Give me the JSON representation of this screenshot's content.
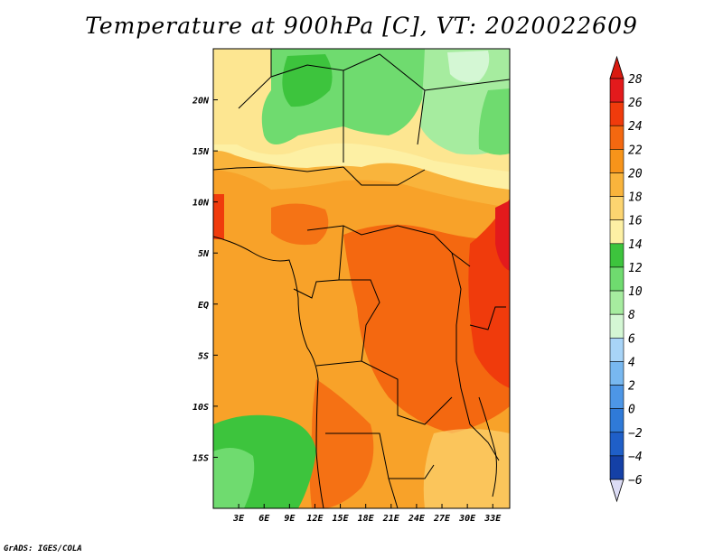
{
  "title": "Temperature at 900hPa [C], VT: 2020022609",
  "credit": "GrADS: IGES/COLA",
  "map": {
    "units": "C",
    "valid_time": "2020022609",
    "lon_range": [
      0,
      35
    ],
    "lat_range": [
      -20,
      25
    ],
    "lon_ticks": [
      {
        "value": 3,
        "label": "3E"
      },
      {
        "value": 6,
        "label": "6E"
      },
      {
        "value": 9,
        "label": "9E"
      },
      {
        "value": 12,
        "label": "12E"
      },
      {
        "value": 15,
        "label": "15E"
      },
      {
        "value": 18,
        "label": "18E"
      },
      {
        "value": 21,
        "label": "21E"
      },
      {
        "value": 24,
        "label": "24E"
      },
      {
        "value": 27,
        "label": "27E"
      },
      {
        "value": 30,
        "label": "30E"
      },
      {
        "value": 33,
        "label": "33E"
      }
    ],
    "lat_ticks": [
      {
        "value": 20,
        "label": "20N"
      },
      {
        "value": 15,
        "label": "15N"
      },
      {
        "value": 10,
        "label": "10N"
      },
      {
        "value": 5,
        "label": "5N"
      },
      {
        "value": 0,
        "label": "EQ"
      },
      {
        "value": -5,
        "label": "5S"
      },
      {
        "value": -10,
        "label": "10S"
      },
      {
        "value": -15,
        "label": "15S"
      }
    ]
  },
  "colorbar": {
    "levels": [
      {
        "value": 28,
        "label": "28",
        "color": "#e31a1c"
      },
      {
        "value": 26,
        "label": "26",
        "color": "#f03b0c"
      },
      {
        "value": 24,
        "label": "24",
        "color": "#f46810"
      },
      {
        "value": 22,
        "label": "22",
        "color": "#f7941a"
      },
      {
        "value": 20,
        "label": "20",
        "color": "#f9b43c"
      },
      {
        "value": 18,
        "label": "18",
        "color": "#fcd470"
      },
      {
        "value": 16,
        "label": "16",
        "color": "#fdf0a4"
      },
      {
        "value": 14,
        "label": "14",
        "color": "#3dc43d"
      },
      {
        "value": 12,
        "label": "12",
        "color": "#6fdb6f"
      },
      {
        "value": 10,
        "label": "10",
        "color": "#a6ec9f"
      },
      {
        "value": 8,
        "label": "8",
        "color": "#d4f7d4"
      },
      {
        "value": 6,
        "label": "6",
        "color": "#a8d4f7"
      },
      {
        "value": 4,
        "label": "4",
        "color": "#78b8f0"
      },
      {
        "value": 2,
        "label": "2",
        "color": "#4d96e6"
      },
      {
        "value": 0,
        "label": "0",
        "color": "#2f7ad8"
      },
      {
        "value": -2,
        "label": "−2",
        "color": "#1f5fc8"
      },
      {
        "value": -4,
        "label": "−4",
        "color": "#1440a6"
      },
      {
        "value": -6,
        "label": "−6",
        "color": "#0b1f78"
      }
    ],
    "above_color": "#d91a10",
    "below_color": "#dcdcf5"
  }
}
